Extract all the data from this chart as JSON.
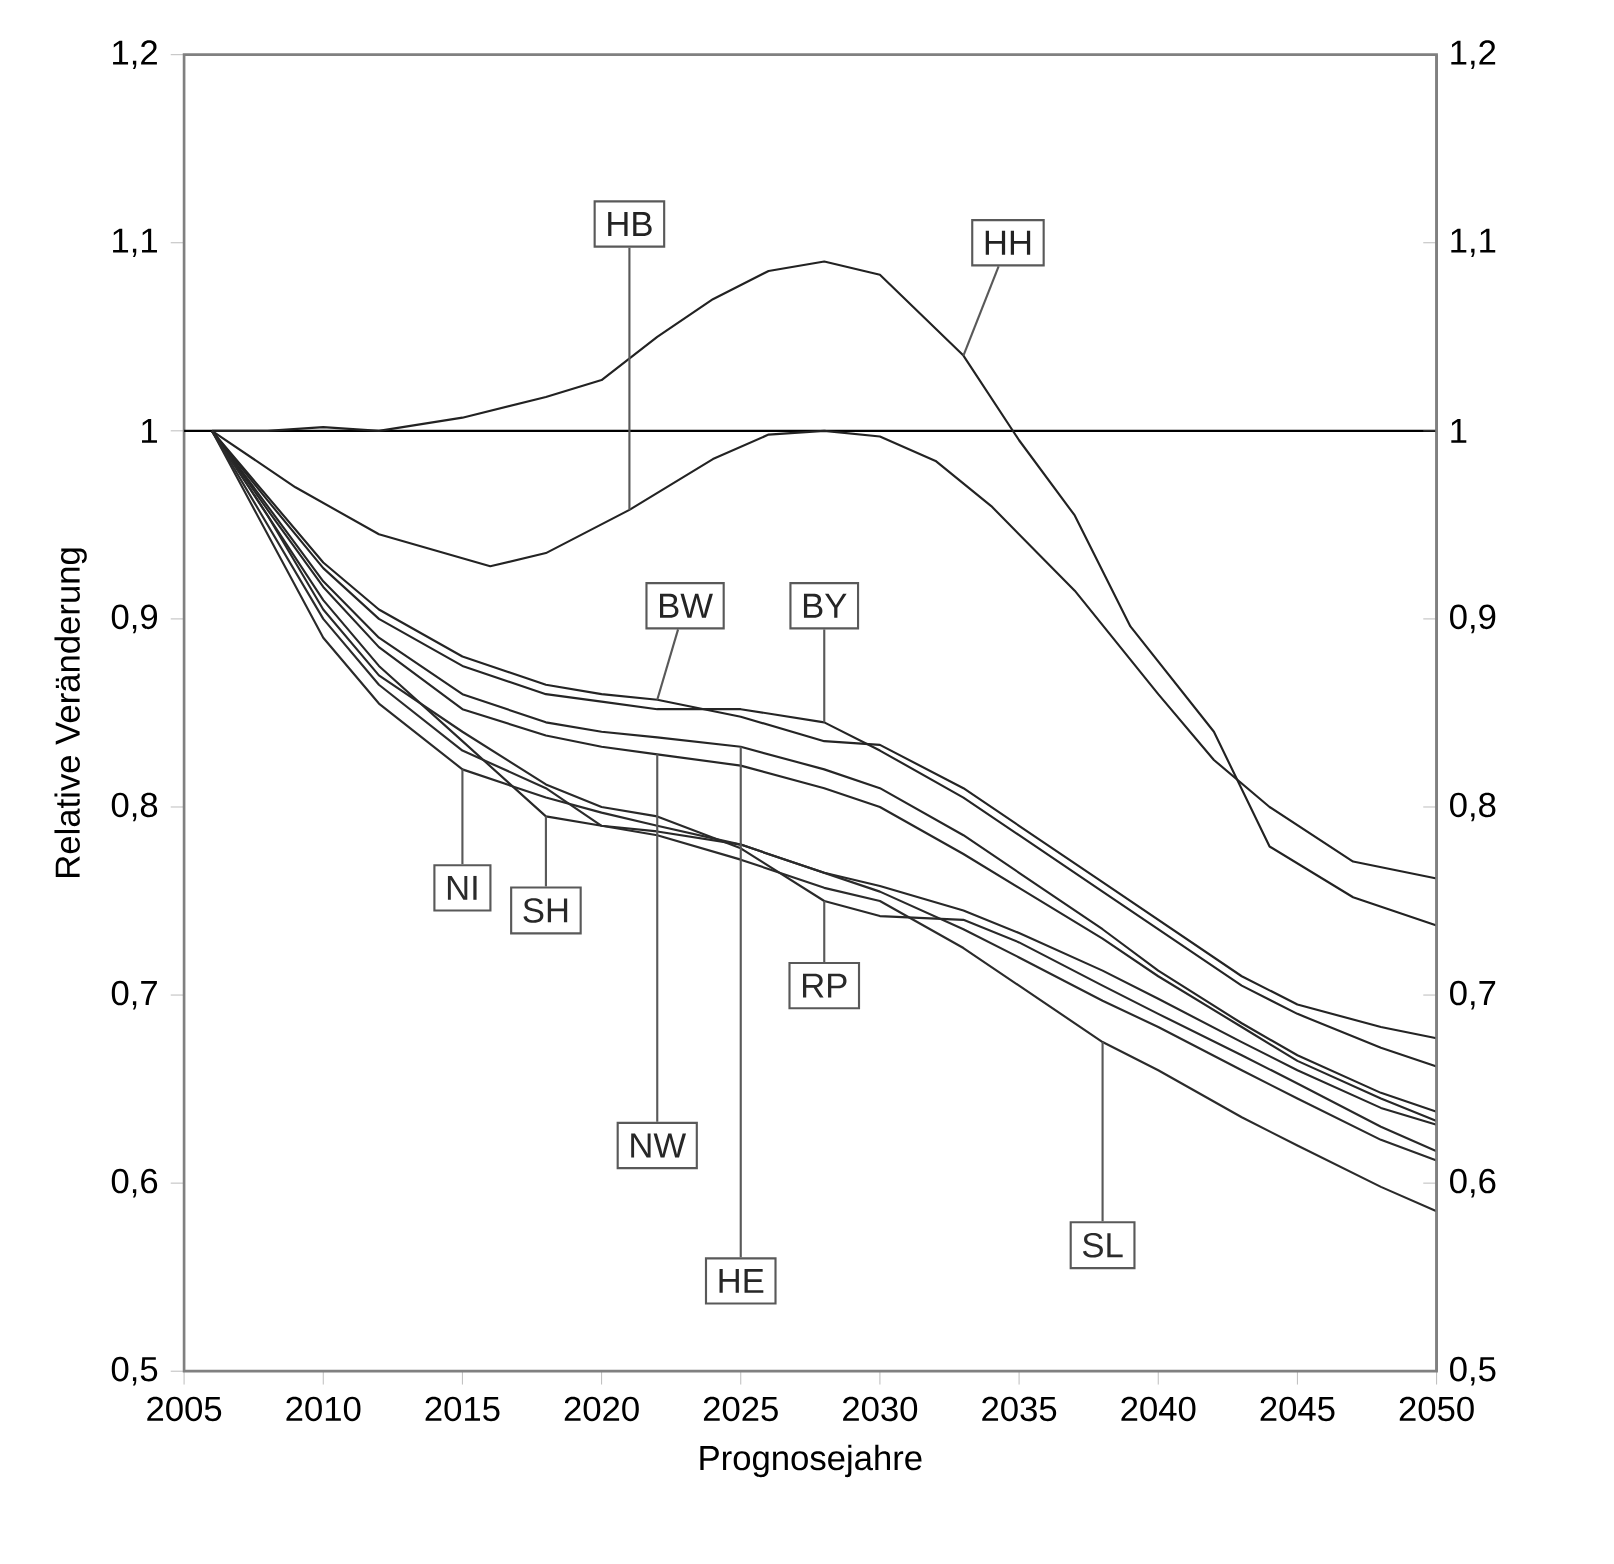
{
  "chart_data": {
    "type": "line",
    "xlabel": "Prognosejahre",
    "ylabel": "Relative Veränderung",
    "x": [
      2006,
      2008,
      2010,
      2012,
      2015,
      2018,
      2020,
      2022,
      2025,
      2028,
      2030,
      2033,
      2035,
      2038,
      2040,
      2043,
      2045,
      2048,
      2050
    ],
    "xlim": [
      2005,
      2050
    ],
    "xticks": [
      2005,
      2010,
      2015,
      2020,
      2025,
      2030,
      2035,
      2040,
      2045,
      2050
    ],
    "ylim": [
      0.5,
      1.2
    ],
    "yticks": [
      {
        "value": 0.5,
        "label": "0,5"
      },
      {
        "value": 0.6,
        "label": "0,6"
      },
      {
        "value": 0.7,
        "label": "0,7"
      },
      {
        "value": 0.8,
        "label": "0,8"
      },
      {
        "value": 0.9,
        "label": "0,9"
      },
      1,
      {
        "value": 1.1,
        "label": "1,1"
      },
      {
        "value": 1.2,
        "label": "1,2"
      }
    ],
    "y2lim": [
      0.5,
      1.2
    ],
    "y2ticks": [
      {
        "value": 0.5,
        "label": "0,5"
      },
      {
        "value": 0.6,
        "label": "0,6"
      },
      {
        "value": 0.7,
        "label": "0,7"
      },
      {
        "value": 0.8,
        "label": "0,8"
      },
      {
        "value": 0.9,
        "label": "0,9"
      },
      1,
      {
        "value": 1.1,
        "label": "1,1"
      },
      {
        "value": 1.2,
        "label": "1,2"
      }
    ],
    "grid": false,
    "legend": false,
    "marker": "none",
    "line_style": "solid",
    "ref_lines": [
      {
        "axis": "y",
        "value": 1,
        "color": "#000000"
      }
    ],
    "series": [
      {
        "name": "HH",
        "color": "#222222",
        "x": [
          2006,
          2008,
          2010,
          2012,
          2015,
          2018,
          2020,
          2022,
          2024,
          2026,
          2028,
          2030,
          2033,
          2035,
          2037,
          2039,
          2042,
          2044,
          2047,
          2050
        ],
        "values": [
          1,
          1,
          1.002,
          1.0,
          1.007,
          1.018,
          1.027,
          1.05,
          1.07,
          1.085,
          1.09,
          1.083,
          1.04,
          0.995,
          0.955,
          0.896,
          0.84,
          0.779,
          0.752,
          0.737
        ]
      },
      {
        "name": "HB",
        "color": "#232323",
        "x": [
          2006,
          2009,
          2012,
          2016,
          2018,
          2021,
          2024,
          2026,
          2028,
          2030,
          2032,
          2034,
          2037,
          2040,
          2042,
          2044,
          2047,
          2050
        ],
        "values": [
          1,
          0.97,
          0.945,
          0.928,
          0.935,
          0.958,
          0.985,
          0.998,
          1.0,
          0.997,
          0.984,
          0.96,
          0.915,
          0.86,
          0.825,
          0.8,
          0.771,
          0.762
        ]
      },
      {
        "name": "BW",
        "color": "#242424",
        "values": [
          1,
          0.965,
          0.93,
          0.905,
          0.88,
          0.865,
          0.86,
          0.857,
          0.848,
          0.835,
          0.833,
          0.81,
          0.79,
          0.76,
          0.74,
          0.71,
          0.695,
          0.683,
          0.677
        ]
      },
      {
        "name": "BY",
        "color": "#252525",
        "values": [
          1,
          0.963,
          0.927,
          0.9,
          0.875,
          0.86,
          0.856,
          0.852,
          0.852,
          0.845,
          0.83,
          0.805,
          0.785,
          0.755,
          0.735,
          0.705,
          0.69,
          0.672,
          0.662
        ]
      },
      {
        "name": "HE",
        "color": "#262626",
        "values": [
          1,
          0.96,
          0.92,
          0.89,
          0.86,
          0.845,
          0.84,
          0.837,
          0.832,
          0.82,
          0.81,
          0.785,
          0.765,
          0.735,
          0.713,
          0.685,
          0.668,
          0.648,
          0.638
        ]
      },
      {
        "name": "NW",
        "color": "#272727",
        "values": [
          1,
          0.958,
          0.917,
          0.885,
          0.852,
          0.838,
          0.832,
          0.828,
          0.822,
          0.81,
          0.8,
          0.775,
          0.757,
          0.73,
          0.71,
          0.683,
          0.665,
          0.645,
          0.633
        ]
      },
      {
        "name": "SH",
        "color": "#282828",
        "values": [
          1,
          0.955,
          0.91,
          0.875,
          0.835,
          0.795,
          0.79,
          0.787,
          0.78,
          0.765,
          0.758,
          0.745,
          0.733,
          0.713,
          0.698,
          0.675,
          0.66,
          0.64,
          0.631
        ]
      },
      {
        "name": "RP",
        "color": "#292929",
        "values": [
          1,
          0.955,
          0.905,
          0.87,
          0.84,
          0.812,
          0.8,
          0.795,
          0.778,
          0.75,
          0.742,
          0.74,
          0.728,
          0.705,
          0.69,
          0.668,
          0.653,
          0.63,
          0.617
        ]
      },
      {
        "name": "NI",
        "color": "#2a2a2a",
        "values": [
          1,
          0.945,
          0.89,
          0.855,
          0.82,
          0.805,
          0.797,
          0.79,
          0.78,
          0.765,
          0.755,
          0.735,
          0.72,
          0.697,
          0.683,
          0.66,
          0.645,
          0.623,
          0.612
        ]
      },
      {
        "name": "SL",
        "color": "#2b2b2b",
        "values": [
          1,
          0.95,
          0.9,
          0.865,
          0.83,
          0.81,
          0.79,
          0.785,
          0.772,
          0.757,
          0.75,
          0.725,
          0.705,
          0.675,
          0.66,
          0.635,
          0.62,
          0.598,
          0.585
        ]
      }
    ]
  }
}
